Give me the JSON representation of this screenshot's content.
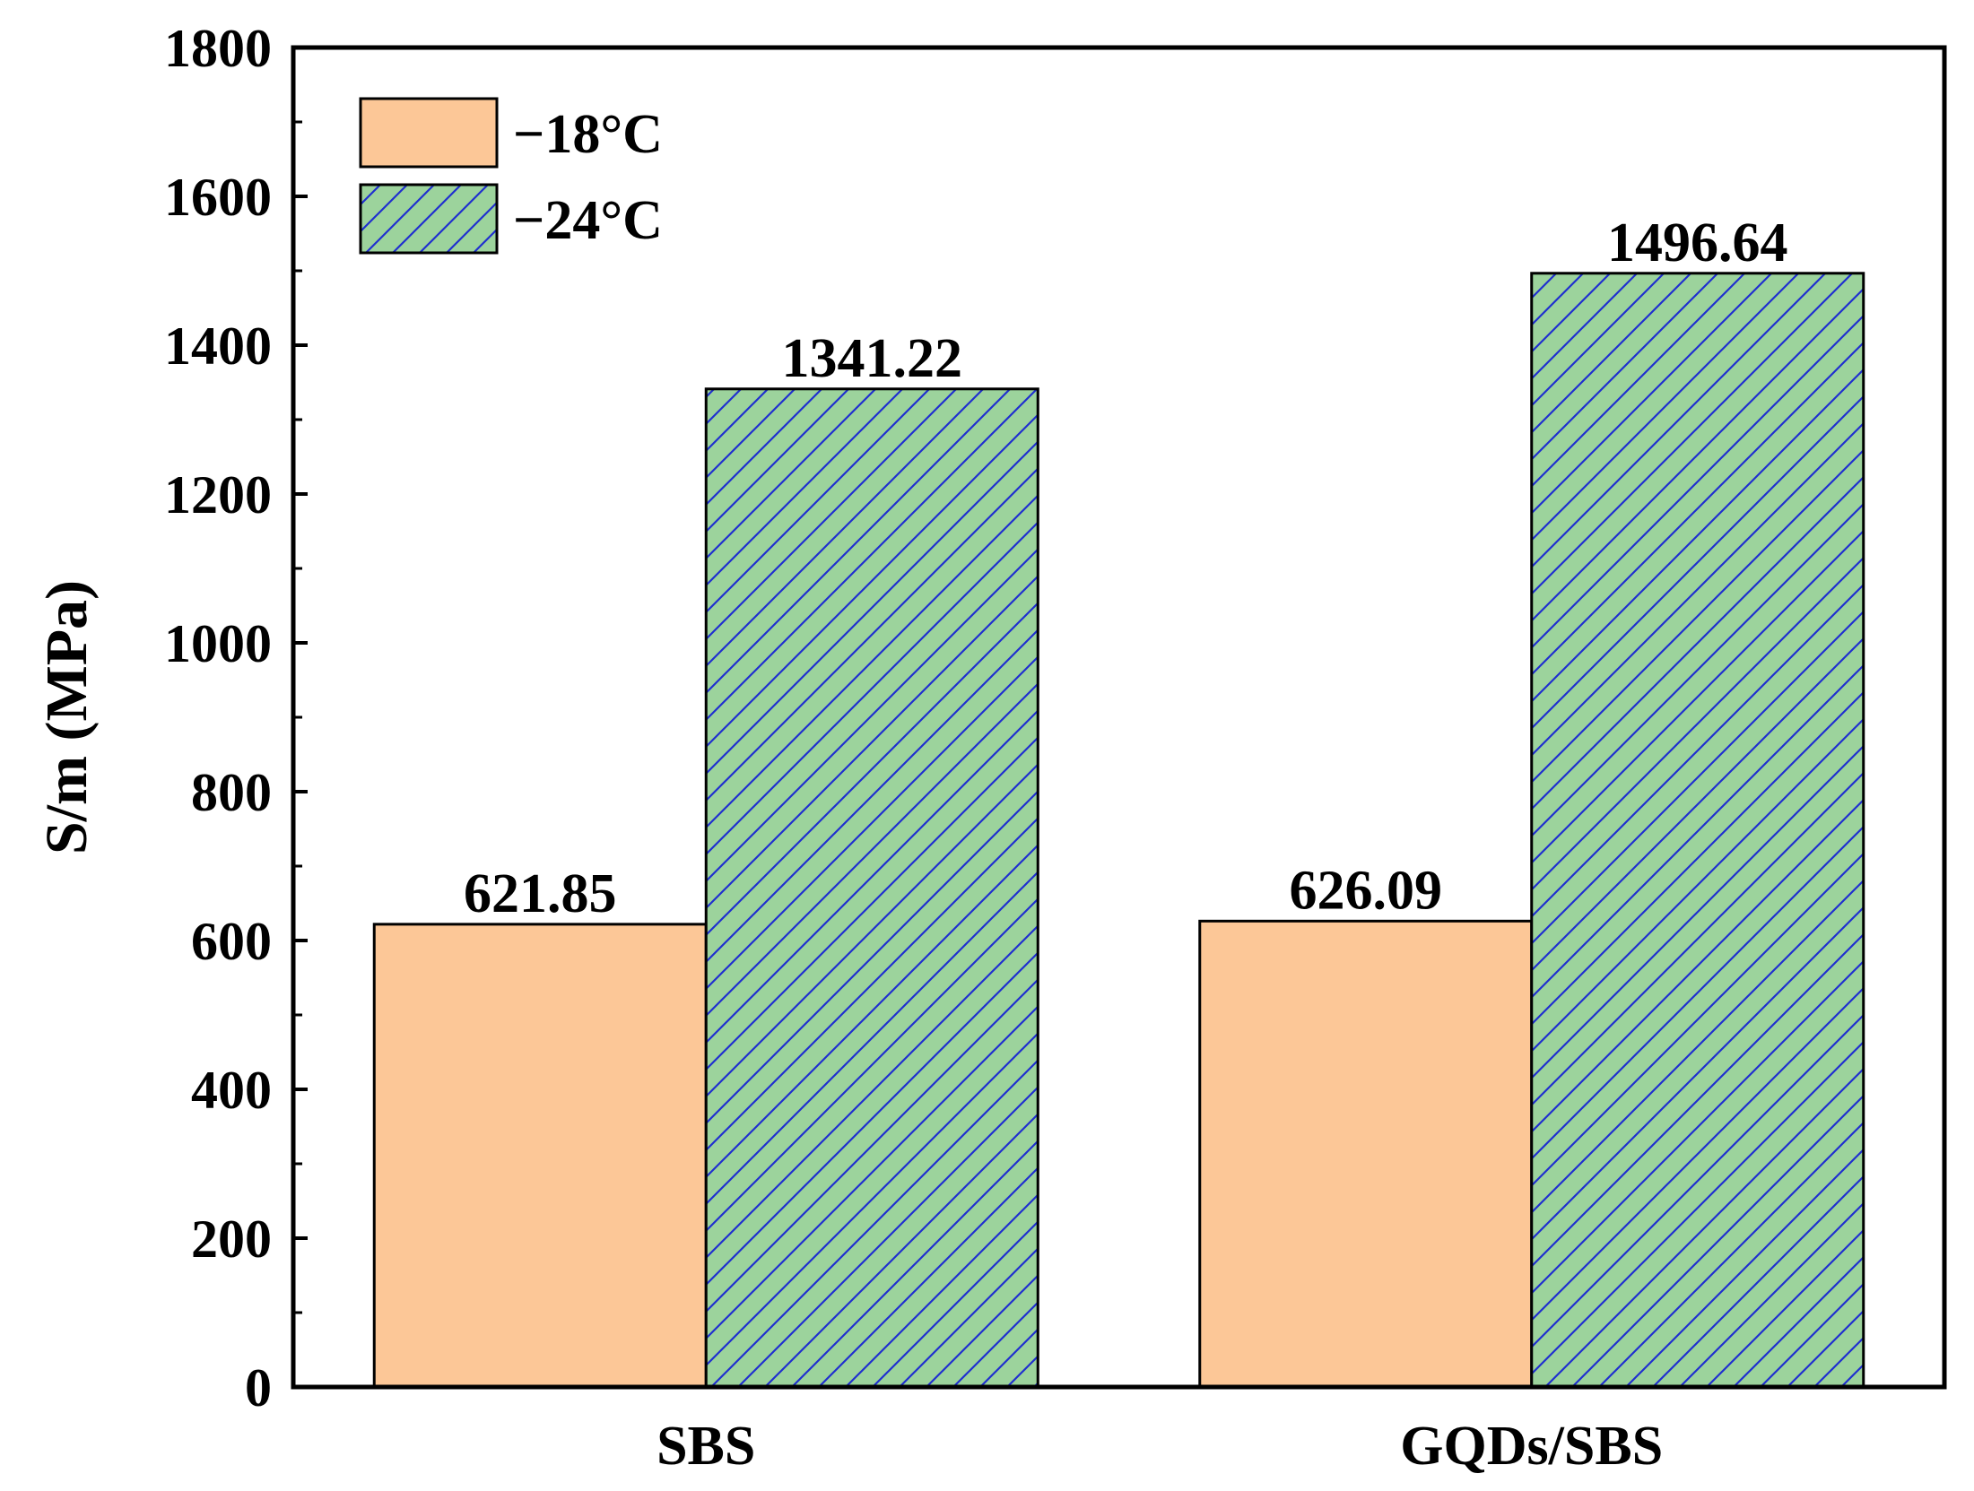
{
  "chart_data": {
    "type": "bar",
    "title": "",
    "xlabel": "",
    "ylabel": "S/m (MPa)",
    "categories": [
      "SBS",
      "GQDs/SBS"
    ],
    "series": [
      {
        "name": "−18°C",
        "values": [
          621.85,
          626.09
        ],
        "value_labels": [
          "621.85",
          "626.09"
        ],
        "color": "#FCC797",
        "hatch": "none"
      },
      {
        "name": "−24°C",
        "values": [
          1341.22,
          1496.64
        ],
        "value_labels": [
          "1341.22",
          "1496.64"
        ],
        "color": "#9CD39C",
        "hatch": "diagonal",
        "hatch_color": "#1f2fcf"
      }
    ],
    "ylim": [
      0,
      1800
    ],
    "yticks": [
      0,
      200,
      400,
      600,
      800,
      1000,
      1200,
      1400,
      1600,
      1800
    ],
    "ytick_labels": [
      "0",
      "200",
      "400",
      "600",
      "800",
      "1000",
      "1200",
      "1400",
      "1600",
      "1800"
    ],
    "y_minor_step": 100,
    "grid": false,
    "legend_position": "top-left"
  }
}
